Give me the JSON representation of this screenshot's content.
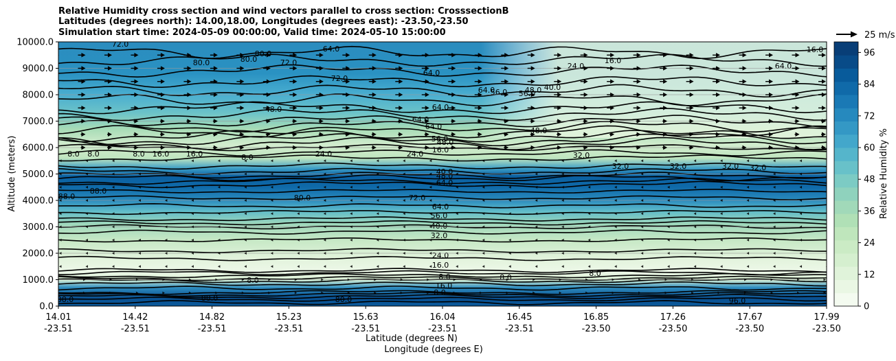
{
  "chart_data": {
    "type": "heatmap",
    "title_lines": [
      "Relative Humidity cross section and wind vectors parallel to cross section: CrosssectionB",
      "Latitudes (degrees north): 14.00,18.00, Longitudes (degrees east): -23.50,-23.50",
      "Simulation start time: 2024-05-09 00:00:00, Valid time: 2024-05-10 15:00:00"
    ],
    "ylabel": "Altitude (meters)",
    "xlabel_lat": "Latitude (degrees N)",
    "xlabel_lon": "Longitude (degrees E)",
    "ylim": [
      0,
      10000
    ],
    "y_ticks": [
      "0.0",
      "1000.0",
      "2000.0",
      "3000.0",
      "4000.0",
      "5000.0",
      "6000.0",
      "7000.0",
      "8000.0",
      "9000.0",
      "10000.0"
    ],
    "x_ticks": [
      {
        "lat": "14.01",
        "lon": "-23.51"
      },
      {
        "lat": "14.42",
        "lon": "-23.51"
      },
      {
        "lat": "14.82",
        "lon": "-23.51"
      },
      {
        "lat": "15.23",
        "lon": "-23.51"
      },
      {
        "lat": "15.63",
        "lon": "-23.51"
      },
      {
        "lat": "16.04",
        "lon": "-23.51"
      },
      {
        "lat": "16.45",
        "lon": "-23.51"
      },
      {
        "lat": "16.85",
        "lon": "-23.50"
      },
      {
        "lat": "17.26",
        "lon": "-23.50"
      },
      {
        "lat": "17.67",
        "lon": "-23.50"
      },
      {
        "lat": "17.99",
        "lon": "-23.50"
      }
    ],
    "colorbar": {
      "label": "Relative Humidity %",
      "ticks": [
        "0",
        "12",
        "24",
        "36",
        "48",
        "60",
        "72",
        "84",
        "96"
      ],
      "range": [
        0,
        100
      ],
      "colors": [
        "#f4fbf0",
        "#eaf7e4",
        "#e0f3da",
        "#d5efcf",
        "#cbebc5",
        "#bfe6bc",
        "#b0e0b6",
        "#a1d9b9",
        "#8fd2bd",
        "#7ccbc4",
        "#68c1c9",
        "#55b5cb",
        "#43a7cb",
        "#3498c5",
        "#2689be",
        "#1a79b5",
        "#106aa9",
        "#085b9b",
        "#084b88",
        "#083e77"
      ]
    },
    "quiver_key": "25 m/s",
    "contour_labels": [
      "72.0",
      "80.0",
      "80.0",
      "80.0",
      "64.0",
      "72.0",
      "72.0",
      "64.0",
      "64.0",
      "48.0",
      "64.0",
      "56.0",
      "56.0",
      "48.0",
      "40.0",
      "24.0",
      "16.0",
      "16.0",
      "64.0",
      "64.0",
      "64.0",
      "48.0",
      "56.0",
      "48.0",
      "32.0",
      "32.0",
      "32.0",
      "32.0",
      "32.0",
      "16.0",
      "16.0",
      "8.0",
      "8.0",
      "8.0",
      "8.0",
      "16.0",
      "24.0",
      "24.0",
      "40.0",
      "48.0",
      "64.0",
      "88.0",
      "88.0",
      "80.0",
      "72.0",
      "64.0",
      "56.0",
      "40.0",
      "32.0",
      "24.0",
      "16.0",
      "8.0",
      "8.0",
      "8.0",
      "8.0",
      "16.0",
      "8.0",
      "96.0",
      "88.0",
      "88.0",
      "80.0"
    ],
    "rh_profile_by_altitude": [
      {
        "altitude": 0,
        "rh": 95
      },
      {
        "altitude": 500,
        "rh": 90
      },
      {
        "altitude": 1000,
        "rh": 8
      },
      {
        "altitude": 2000,
        "rh": 24
      },
      {
        "altitude": 3000,
        "rh": 40
      },
      {
        "altitude": 4000,
        "rh": 80
      },
      {
        "altitude": 5000,
        "rh": 64
      },
      {
        "altitude": 6000,
        "rh": 24
      },
      {
        "altitude": 7000,
        "rh": 64
      },
      {
        "altitude": 8000,
        "rh": 72
      },
      {
        "altitude": 9000,
        "rh": 80
      },
      {
        "altitude": 10000,
        "rh": 72
      }
    ]
  }
}
